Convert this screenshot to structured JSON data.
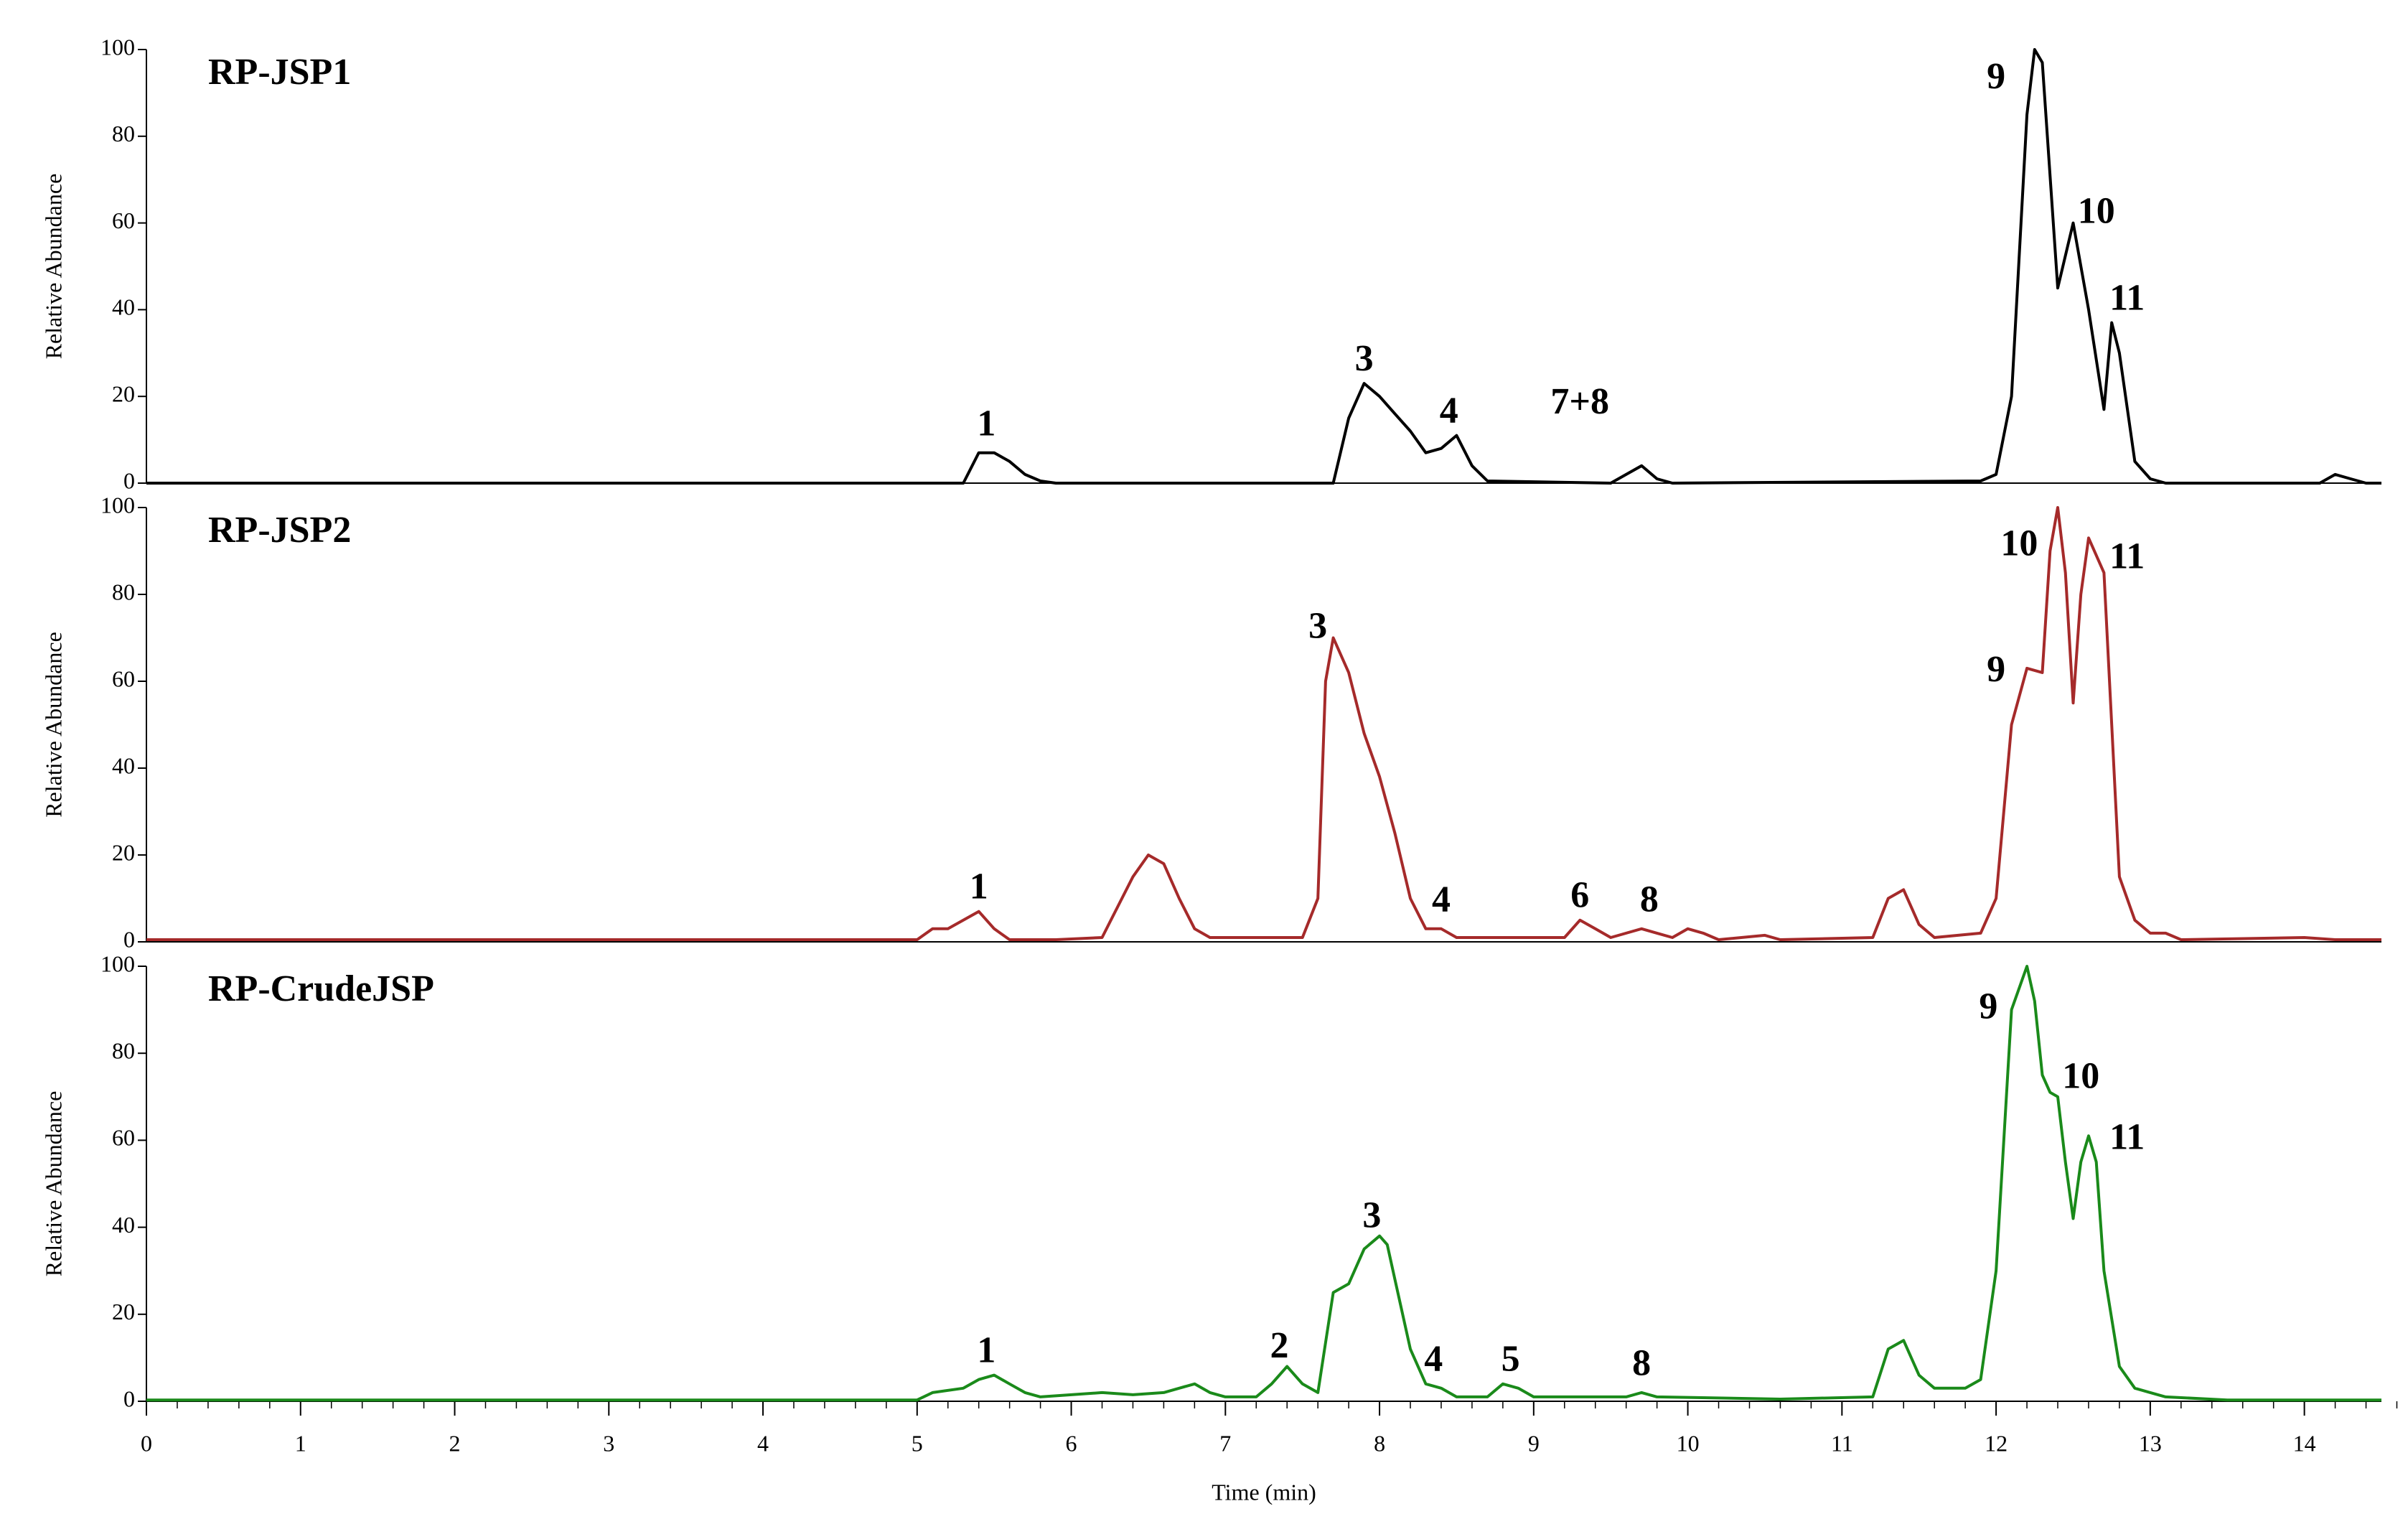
{
  "chart_data": [
    {
      "type": "line",
      "title": "RP-JSP1",
      "ylabel": "Relative  Abundance",
      "color": "#000000",
      "xlim": [
        0,
        14.5
      ],
      "ylim": [
        0,
        100
      ],
      "yticks": [
        0,
        20,
        40,
        60,
        80,
        100
      ],
      "x": [
        0,
        5.3,
        5.4,
        5.5,
        5.6,
        5.7,
        5.8,
        5.9,
        7.7,
        7.8,
        7.9,
        8.0,
        8.1,
        8.2,
        8.3,
        8.4,
        8.5,
        8.6,
        8.7,
        9.5,
        9.6,
        9.7,
        9.8,
        9.9,
        11.9,
        12.0,
        12.1,
        12.2,
        12.25,
        12.3,
        12.4,
        12.5,
        12.6,
        12.7,
        12.75,
        12.8,
        12.9,
        13.0,
        13.1,
        14.1,
        14.2,
        14.3,
        14.4,
        14.5
      ],
      "values": [
        0,
        0,
        7,
        7,
        5,
        2,
        0.5,
        0,
        0,
        15,
        23,
        20,
        16,
        12,
        7,
        8,
        11,
        4,
        0.5,
        0,
        2,
        4,
        1,
        0,
        0.5,
        2,
        20,
        85,
        100,
        97,
        45,
        60,
        40,
        17,
        37,
        30,
        5,
        1,
        0,
        0,
        2,
        1,
        0,
        0
      ],
      "annotations": [
        {
          "text": "1",
          "x": 5.45,
          "y": 13
        },
        {
          "text": "3",
          "x": 7.9,
          "y": 28
        },
        {
          "text": "4",
          "x": 8.45,
          "y": 16
        },
        {
          "text": "7+8",
          "x": 9.3,
          "y": 18
        },
        {
          "text": "9",
          "x": 12.0,
          "y": 93
        },
        {
          "text": "10",
          "x": 12.65,
          "y": 62
        },
        {
          "text": "11",
          "x": 12.85,
          "y": 42
        }
      ]
    },
    {
      "type": "line",
      "title": "RP-JSP2",
      "ylabel": "Relative  Abundance",
      "color": "#a52a2a",
      "xlim": [
        0,
        14.5
      ],
      "ylim": [
        0,
        100
      ],
      "yticks": [
        0,
        20,
        40,
        60,
        80,
        100
      ],
      "x": [
        0,
        5.0,
        5.1,
        5.2,
        5.3,
        5.4,
        5.5,
        5.6,
        5.9,
        6.2,
        6.3,
        6.4,
        6.5,
        6.6,
        6.7,
        6.8,
        6.9,
        7.5,
        7.6,
        7.65,
        7.7,
        7.8,
        7.9,
        8.0,
        8.1,
        8.2,
        8.3,
        8.4,
        8.5,
        9.2,
        9.3,
        9.4,
        9.5,
        9.7,
        9.8,
        9.9,
        10.0,
        10.1,
        10.2,
        10.5,
        10.6,
        11.2,
        11.3,
        11.4,
        11.5,
        11.6,
        11.9,
        12.0,
        12.1,
        12.2,
        12.3,
        12.35,
        12.4,
        12.45,
        12.5,
        12.55,
        12.6,
        12.7,
        12.75,
        12.8,
        12.9,
        13.0,
        13.1,
        13.2,
        14.0,
        14.2,
        14.5
      ],
      "values": [
        0.5,
        0.5,
        3,
        3,
        5,
        7,
        3,
        0.5,
        0.5,
        1,
        8,
        15,
        20,
        18,
        10,
        3,
        1,
        1,
        10,
        60,
        70,
        62,
        48,
        38,
        25,
        10,
        3,
        3,
        1,
        1,
        5,
        3,
        1,
        3,
        2,
        1,
        3,
        2,
        0.5,
        1.5,
        0.5,
        1,
        10,
        12,
        4,
        1,
        2,
        10,
        50,
        63,
        62,
        90,
        100,
        85,
        55,
        80,
        93,
        85,
        50,
        15,
        5,
        2,
        2,
        0.5,
        1,
        0.5,
        0.5
      ],
      "annotations": [
        {
          "text": "1",
          "x": 5.4,
          "y": 12
        },
        {
          "text": "3",
          "x": 7.6,
          "y": 72
        },
        {
          "text": "4",
          "x": 8.4,
          "y": 9
        },
        {
          "text": "6",
          "x": 9.3,
          "y": 10
        },
        {
          "text": "8",
          "x": 9.75,
          "y": 9
        },
        {
          "text": "9",
          "x": 12.0,
          "y": 62
        },
        {
          "text": "10",
          "x": 12.15,
          "y": 91
        },
        {
          "text": "11",
          "x": 12.85,
          "y": 88
        }
      ]
    },
    {
      "type": "line",
      "title": "RP-CrudeJSP",
      "ylabel": "Relative  Abundance",
      "xlabel": "Time  (min)",
      "color": "#1a8a1a",
      "xlim": [
        0,
        14.5
      ],
      "ylim": [
        0,
        100
      ],
      "yticks": [
        0,
        20,
        40,
        60,
        80,
        100
      ],
      "xticks": [
        0,
        1,
        2,
        3,
        4,
        5,
        6,
        7,
        8,
        9,
        10,
        11,
        12,
        13,
        14
      ],
      "xminor": 0.2,
      "x": [
        0,
        5.0,
        5.1,
        5.3,
        5.4,
        5.5,
        5.6,
        5.7,
        5.8,
        6.0,
        6.2,
        6.4,
        6.6,
        6.7,
        6.8,
        6.9,
        7.0,
        7.2,
        7.3,
        7.4,
        7.5,
        7.6,
        7.7,
        7.8,
        7.9,
        8.0,
        8.05,
        8.1,
        8.2,
        8.3,
        8.4,
        8.5,
        8.7,
        8.8,
        8.9,
        9.0,
        9.6,
        9.7,
        9.8,
        10.6,
        11.2,
        11.3,
        11.4,
        11.5,
        11.6,
        11.8,
        11.9,
        12.0,
        12.1,
        12.2,
        12.25,
        12.3,
        12.35,
        12.4,
        12.45,
        12.5,
        12.55,
        12.6,
        12.65,
        12.7,
        12.8,
        12.9,
        13.0,
        13.1,
        13.5,
        14.5
      ],
      "values": [
        0.3,
        0.3,
        2,
        3,
        5,
        6,
        4,
        2,
        1,
        1.5,
        2,
        1.5,
        2,
        3,
        4,
        2,
        1,
        1,
        4,
        8,
        4,
        2,
        25,
        27,
        35,
        38,
        36,
        28,
        12,
        4,
        3,
        1,
        1,
        4,
        3,
        1,
        1,
        2,
        1,
        0.5,
        1,
        12,
        14,
        6,
        3,
        3,
        5,
        30,
        90,
        100,
        92,
        75,
        71,
        70,
        55,
        42,
        55,
        61,
        55,
        30,
        8,
        3,
        2,
        1,
        0.3,
        0.3
      ],
      "annotations": [
        {
          "text": "1",
          "x": 5.45,
          "y": 11
        },
        {
          "text": "2",
          "x": 7.35,
          "y": 12
        },
        {
          "text": "3",
          "x": 7.95,
          "y": 42
        },
        {
          "text": "4",
          "x": 8.35,
          "y": 9
        },
        {
          "text": "5",
          "x": 8.85,
          "y": 9
        },
        {
          "text": "8",
          "x": 9.7,
          "y": 8
        },
        {
          "text": "9",
          "x": 11.95,
          "y": 90
        },
        {
          "text": "10",
          "x": 12.55,
          "y": 74
        },
        {
          "text": "11",
          "x": 12.85,
          "y": 60
        }
      ]
    }
  ]
}
